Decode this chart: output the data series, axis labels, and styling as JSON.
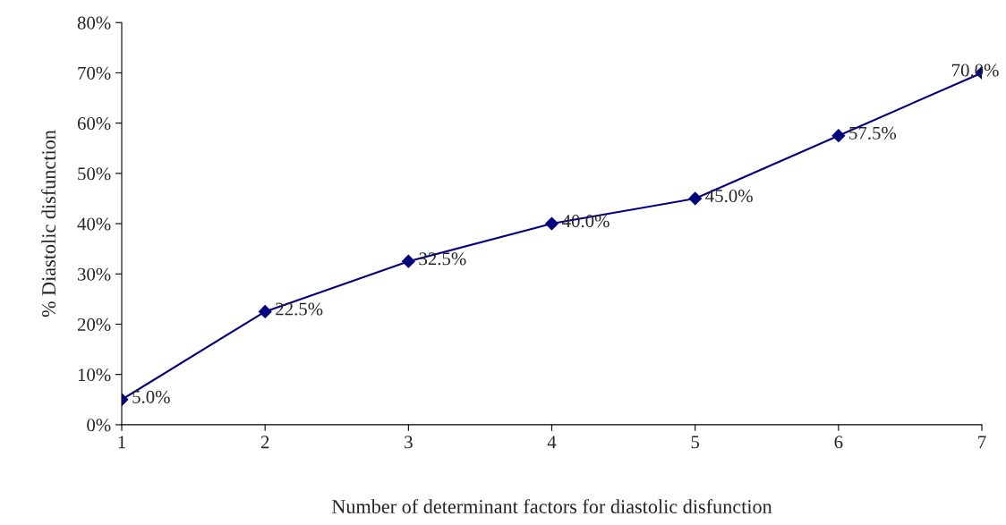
{
  "chart_data": {
    "type": "line",
    "xlabel": "Number of determinant factors for diastolic disfunction",
    "ylabel": "% Diastolic disfunction",
    "categories": [
      "1",
      "2",
      "3",
      "4",
      "5",
      "6",
      "7"
    ],
    "series": [
      {
        "color": "#000080",
        "values": [
          5.0,
          22.5,
          32.5,
          40.0,
          45.0,
          57.5,
          70.0
        ],
        "value_labels": [
          "5.0%",
          "22.5%",
          "32.5%",
          "40.0%",
          "45.0%",
          "57.5%",
          "70.0%"
        ]
      }
    ],
    "ylim": [
      0,
      80
    ],
    "yticks": [
      {
        "value": 0,
        "label": "0%"
      },
      {
        "value": 10,
        "label": "10%"
      },
      {
        "value": 20,
        "label": "20%"
      },
      {
        "value": 30,
        "label": "30%"
      },
      {
        "value": 40,
        "label": "40%"
      },
      {
        "value": 50,
        "label": "50%"
      },
      {
        "value": 60,
        "label": "60%"
      },
      {
        "value": 70,
        "label": "70%"
      },
      {
        "value": 80,
        "label": "80%"
      }
    ],
    "marker": "diamond",
    "line_style": "solid",
    "grid": false
  }
}
